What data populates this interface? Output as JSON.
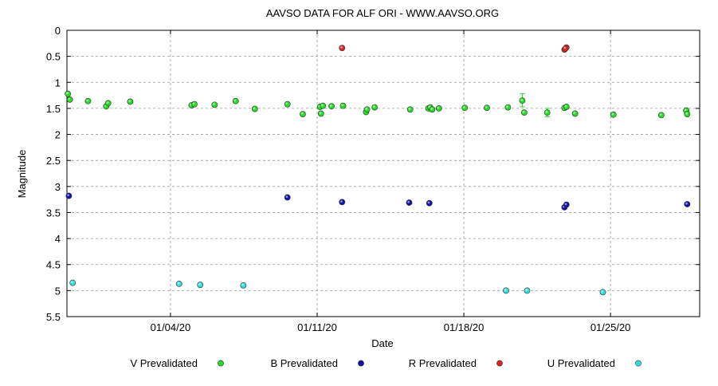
{
  "chart_data": {
    "type": "scatter",
    "title": "AAVSO DATA FOR ALF ORI - WWW.AAVSO.ORG",
    "xlabel": "Date",
    "ylabel": "Magnitude",
    "x_unit": "days since 12/29/19",
    "xlim": [
      0.0,
      33.0
    ],
    "ylim": [
      0,
      5.5
    ],
    "y_inverted": true,
    "grid": true,
    "legend_position": "bottom",
    "x_ticks": [
      {
        "value": 5.4,
        "label": "01/04/20"
      },
      {
        "value": 13.05,
        "label": "01/11/20"
      },
      {
        "value": 20.7,
        "label": "01/18/20"
      },
      {
        "value": 28.35,
        "label": "01/25/20"
      }
    ],
    "y_ticks": [
      {
        "value": 0,
        "label": "0"
      },
      {
        "value": 0.5,
        "label": "0.5"
      },
      {
        "value": 1,
        "label": "1"
      },
      {
        "value": 1.5,
        "label": "1.5"
      },
      {
        "value": 2,
        "label": "2"
      },
      {
        "value": 2.5,
        "label": "2.5"
      },
      {
        "value": 3,
        "label": "3"
      },
      {
        "value": 3.5,
        "label": "3.5"
      },
      {
        "value": 4,
        "label": "4"
      },
      {
        "value": 4.5,
        "label": "4.5"
      },
      {
        "value": 5,
        "label": "5"
      },
      {
        "value": 5.5,
        "label": "5.5"
      }
    ],
    "series": [
      {
        "name": "V Prevalidated",
        "color": "#22dd22",
        "points": [
          [
            0.05,
            1.22
          ],
          [
            0.15,
            1.33
          ],
          [
            1.1,
            1.36
          ],
          [
            2.05,
            1.46
          ],
          [
            2.15,
            1.4
          ],
          [
            3.3,
            1.37
          ],
          [
            6.5,
            1.44
          ],
          [
            6.65,
            1.42
          ],
          [
            7.7,
            1.43
          ],
          [
            8.8,
            1.36
          ],
          [
            9.8,
            1.51
          ],
          [
            11.5,
            1.42
          ],
          [
            12.3,
            1.61
          ],
          [
            13.2,
            1.47
          ],
          [
            13.35,
            1.45
          ],
          [
            13.8,
            1.46
          ],
          [
            14.4,
            1.45
          ],
          [
            15.6,
            1.57
          ],
          [
            15.65,
            1.52
          ],
          [
            16.05,
            1.48
          ],
          [
            17.9,
            1.52
          ],
          [
            18.85,
            1.5
          ],
          [
            18.95,
            1.48
          ],
          [
            19.05,
            1.52
          ],
          [
            19.4,
            1.5
          ],
          [
            20.75,
            1.49
          ],
          [
            21.9,
            1.49
          ],
          [
            23.0,
            1.48
          ],
          [
            23.75,
            1.35
          ],
          [
            23.85,
            1.58
          ],
          [
            25.05,
            1.58
          ],
          [
            25.95,
            1.49
          ],
          [
            26.05,
            1.47
          ],
          [
            26.5,
            1.6
          ],
          [
            28.5,
            1.62
          ],
          [
            31.0,
            1.63
          ],
          [
            32.3,
            1.54
          ],
          [
            32.35,
            1.61
          ],
          [
            13.25,
            1.6
          ]
        ],
        "error_bars": [
          {
            "x": 23.75,
            "low": 1.22,
            "high": 1.47
          },
          {
            "x": 25.05,
            "low": 1.5,
            "high": 1.66
          }
        ]
      },
      {
        "name": "B Prevalidated",
        "color": "#1111aa",
        "points": [
          [
            0.1,
            3.18
          ],
          [
            11.5,
            3.21
          ],
          [
            14.35,
            3.3
          ],
          [
            17.85,
            3.31
          ],
          [
            18.9,
            3.32
          ],
          [
            25.95,
            3.4
          ],
          [
            26.05,
            3.35
          ],
          [
            32.35,
            3.34
          ]
        ]
      },
      {
        "name": "R Prevalidated",
        "color": "#dd2222",
        "points": [
          [
            14.35,
            0.34
          ],
          [
            25.95,
            0.37
          ],
          [
            26.05,
            0.33
          ],
          [
            26.0,
            0.35
          ]
        ]
      },
      {
        "name": "U Prevalidated",
        "color": "#33dddd",
        "points": [
          [
            0.3,
            4.85
          ],
          [
            5.85,
            4.87
          ],
          [
            6.95,
            4.89
          ],
          [
            9.2,
            4.9
          ],
          [
            22.9,
            5.0
          ],
          [
            24.0,
            5.0
          ],
          [
            27.95,
            5.03
          ]
        ]
      }
    ]
  }
}
